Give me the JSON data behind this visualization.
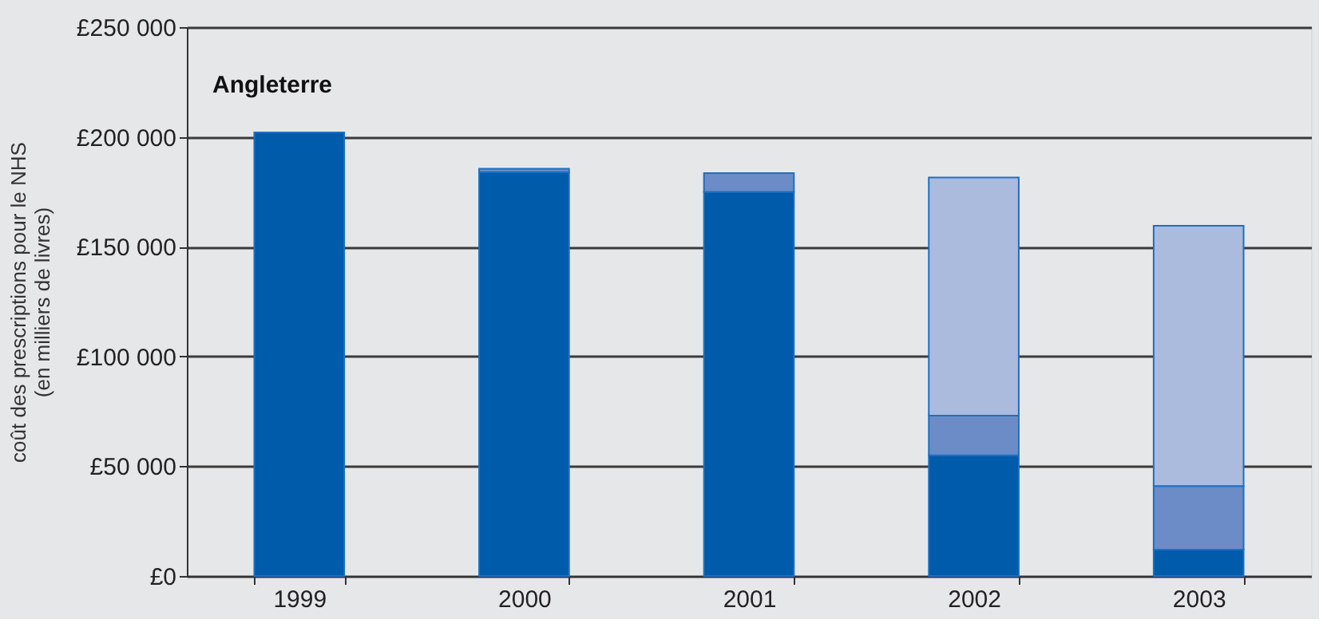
{
  "chart_data": {
    "type": "bar",
    "stacked": true,
    "annotations": [
      "Angleterre"
    ],
    "ylabel": "coût des prescriptions pour le NHS\n(en milliers de livres)",
    "categories": [
      "1999",
      "2000",
      "2001",
      "2002",
      "2003"
    ],
    "series": [
      {
        "color": "#005bab",
        "values": [
          202000,
          184000,
          175000,
          55000,
          12000
        ]
      },
      {
        "color": "#6b8cc6",
        "values": [
          null,
          1500,
          8500,
          18000,
          29000
        ]
      },
      {
        "color": "#aabbde",
        "values": [
          null,
          null,
          null,
          108500,
          118500
        ]
      }
    ],
    "ylim": [
      0,
      250000
    ],
    "yticks": [
      {
        "value": 0,
        "label": "£0"
      },
      {
        "value": 50000,
        "label": "£50 000"
      },
      {
        "value": 100000,
        "label": "£100 000"
      },
      {
        "value": 150000,
        "label": "£150 000"
      },
      {
        "value": 200000,
        "label": "£200 000"
      },
      {
        "value": 250000,
        "label": "£250 000"
      }
    ],
    "grid": "y"
  }
}
